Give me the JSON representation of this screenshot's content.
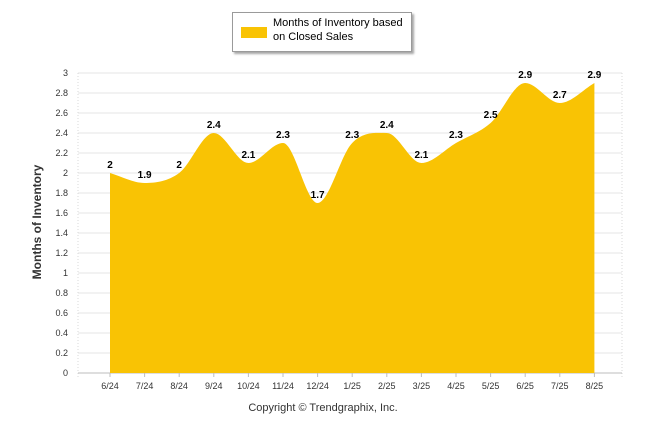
{
  "chart_data": {
    "type": "area",
    "categories": [
      "6/24",
      "7/24",
      "8/24",
      "9/24",
      "10/24",
      "11/24",
      "12/24",
      "1/25",
      "2/25",
      "3/25",
      "4/25",
      "5/25",
      "6/25",
      "7/25",
      "8/25"
    ],
    "series": [
      {
        "name": "Months of Inventory based on Closed Sales",
        "values": [
          2,
          1.9,
          2,
          2.4,
          2.1,
          2.3,
          1.7,
          2.3,
          2.4,
          2.1,
          2.3,
          2.5,
          2.9,
          2.7,
          2.9
        ]
      }
    ],
    "data_labels": [
      "2",
      "1.9",
      "2",
      "2.4",
      "2.1",
      "2.3",
      "1.7",
      "2.3",
      "2.4",
      "2.1",
      "2.3",
      "2.5",
      "2.9",
      "2.7",
      "2.9"
    ],
    "title": "",
    "xlabel": "",
    "ylabel": "Months of Inventory",
    "ylim": [
      0,
      3
    ],
    "yticks": [
      0,
      0.2,
      0.4,
      0.6,
      0.8,
      1,
      1.2,
      1.4,
      1.6,
      1.8,
      2,
      2.2,
      2.4,
      2.6,
      2.8,
      3
    ],
    "ytick_labels": [
      "0",
      "0.2",
      "0.4",
      "0.6",
      "0.8",
      "1",
      "1.2",
      "1.4",
      "1.6",
      "1.8",
      "2",
      "2.2",
      "2.4",
      "2.6",
      "2.8",
      "3"
    ],
    "grid": true,
    "legend_position": "top-center",
    "color": "#f9c304"
  },
  "legend": {
    "label_line1": "Months of Inventory based",
    "label_line2": "on Closed Sales"
  },
  "copyright": "Copyright © Trendgraphix, Inc."
}
